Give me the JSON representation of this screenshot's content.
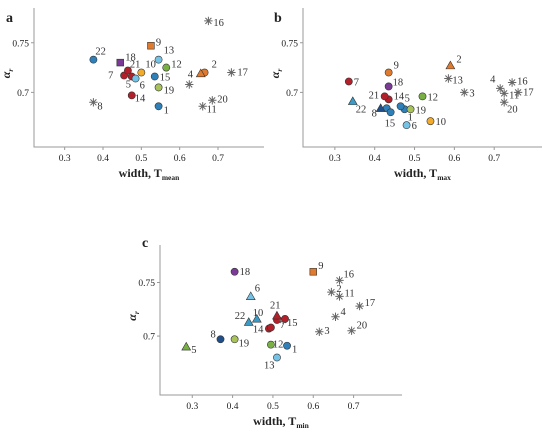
{
  "figure": {
    "colors": {
      "blue": "#2f7fb8",
      "navy": "#1f4f8a",
      "red": "#b3202a",
      "orange": "#e07a2e",
      "green": "#78b043",
      "lightblue": "#74c2e6",
      "purple": "#7a3a96",
      "olive": "#a7c35a",
      "yellow": "#f2ab2a",
      "teal": "#3c9bc6",
      "star": "#666666"
    }
  },
  "chart_data": [
    {
      "type": "scatter",
      "panel_label": "a",
      "xlabel": "width, T",
      "xlabel_sub": "mean",
      "ylabel": "α",
      "ylabel_sub": "r",
      "xlim": [
        0.22,
        0.82
      ],
      "ylim": [
        0.645,
        0.785
      ],
      "xticks": [
        {
          "value": 0.3,
          "label": "0.3"
        },
        {
          "value": 0.4,
          "label": "0.4"
        },
        {
          "value": 0.5,
          "label": "0.5"
        },
        {
          "value": 0.6,
          "label": "0.6"
        },
        {
          "value": 0.7,
          "label": "0.7"
        }
      ],
      "yticks": [
        {
          "value": 0.7,
          "label": "0.7"
        },
        {
          "value": 0.75,
          "label": "0.75"
        }
      ],
      "points": [
        {
          "label": "1",
          "x": 0.545,
          "y": 0.686,
          "shape": "circle",
          "color": "#2f7fb8",
          "dx": 5,
          "dy": 7
        },
        {
          "label": "2",
          "x": 0.665,
          "y": 0.72,
          "shape": "circle",
          "color": "#e07a2e",
          "dx": 7,
          "dy": -5
        },
        {
          "label": "4",
          "x": 0.655,
          "y": 0.719,
          "shape": "triangle",
          "color": "#e07a2e",
          "dx": -13,
          "dy": 4
        },
        {
          "label": "5",
          "x": 0.475,
          "y": 0.716,
          "shape": "circle",
          "color": "#b3202a",
          "dx": -6,
          "dy": 11
        },
        {
          "label": "6",
          "x": 0.485,
          "y": 0.714,
          "shape": "circle",
          "color": "#74c2e6",
          "dx": 4,
          "dy": 10
        },
        {
          "label": "7",
          "x": 0.455,
          "y": 0.717,
          "shape": "circle",
          "color": "#b3202a",
          "dx": -16,
          "dy": 3
        },
        {
          "label": "8",
          "x": 0.375,
          "y": 0.69,
          "shape": "star",
          "color": "#666666",
          "dx": 4,
          "dy": 7
        },
        {
          "label": "9",
          "x": 0.525,
          "y": 0.747,
          "shape": "square",
          "color": "#e07a2e",
          "dx": 5,
          "dy": 0
        },
        {
          "label": "10",
          "x": 0.5,
          "y": 0.72,
          "shape": "circle",
          "color": "#f2ab2a",
          "dx": 4,
          "dy": -5
        },
        {
          "label": "11",
          "x": 0.66,
          "y": 0.686,
          "shape": "star",
          "color": "#666666",
          "dx": 4,
          "dy": 6
        },
        {
          "label": "12",
          "x": 0.565,
          "y": 0.725,
          "shape": "circle",
          "color": "#78b043",
          "dx": 5,
          "dy": 0
        },
        {
          "label": "13",
          "x": 0.545,
          "y": 0.733,
          "shape": "circle",
          "color": "#74c2e6",
          "dx": 5,
          "dy": -6
        },
        {
          "label": "14",
          "x": 0.475,
          "y": 0.697,
          "shape": "circle",
          "color": "#b3202a",
          "dx": 3,
          "dy": 6
        },
        {
          "label": "15",
          "x": 0.535,
          "y": 0.716,
          "shape": "circle",
          "color": "#2f7fb8",
          "dx": 5,
          "dy": 4
        },
        {
          "label": "16",
          "x": 0.675,
          "y": 0.772,
          "shape": "star",
          "color": "#666666",
          "dx": 5,
          "dy": 5
        },
        {
          "label": "17",
          "x": 0.735,
          "y": 0.72,
          "shape": "star",
          "color": "#666666",
          "dx": 6,
          "dy": 3
        },
        {
          "label": "18",
          "x": 0.445,
          "y": 0.73,
          "shape": "square",
          "color": "#7a3a96",
          "dx": 5,
          "dy": -2
        },
        {
          "label": "19",
          "x": 0.545,
          "y": 0.705,
          "shape": "circle",
          "color": "#a7c35a",
          "dx": 5,
          "dy": 6
        },
        {
          "label": "20",
          "x": 0.685,
          "y": 0.692,
          "shape": "star",
          "color": "#666666",
          "dx": 5,
          "dy": 2
        },
        {
          "label": "21",
          "x": 0.465,
          "y": 0.722,
          "shape": "circle",
          "color": "#b3202a",
          "dx": 2,
          "dy": -3
        },
        {
          "label": "22",
          "x": 0.375,
          "y": 0.733,
          "shape": "circle",
          "color": "#2f7fb8",
          "dx": 2,
          "dy": -5
        },
        {
          "label": "",
          "x": 0.625,
          "y": 0.708,
          "shape": "star",
          "color": "#666666",
          "dx": 0,
          "dy": 0
        }
      ]
    },
    {
      "type": "scatter",
      "panel_label": "b",
      "xlabel": "width, T",
      "xlabel_sub": "max",
      "ylabel": "α",
      "ylabel_sub": "r",
      "xlim": [
        0.22,
        0.82
      ],
      "ylim": [
        0.645,
        0.785
      ],
      "xticks": [
        {
          "value": 0.3,
          "label": "0.3"
        },
        {
          "value": 0.4,
          "label": "0.4"
        },
        {
          "value": 0.5,
          "label": "0.5"
        },
        {
          "value": 0.6,
          "label": "0.6"
        },
        {
          "value": 0.7,
          "label": "0.7"
        }
      ],
      "yticks": [
        {
          "value": 0.7,
          "label": "0.7"
        },
        {
          "value": 0.75,
          "label": "0.75"
        }
      ],
      "points": [
        {
          "label": "1",
          "x": 0.475,
          "y": 0.683,
          "shape": "circle",
          "color": "#2f7fb8",
          "dx": 3,
          "dy": 11
        },
        {
          "label": "2",
          "x": 0.59,
          "y": 0.727,
          "shape": "triangle",
          "color": "#e07a2e",
          "dx": 6,
          "dy": -3
        },
        {
          "label": "3",
          "x": 0.625,
          "y": 0.7,
          "shape": "star",
          "color": "#666666",
          "dx": 5,
          "dy": 4
        },
        {
          "label": "4",
          "x": 0.715,
          "y": 0.704,
          "shape": "star",
          "color": "#666666",
          "dx": -10,
          "dy": -6
        },
        {
          "label": "5",
          "x": 0.465,
          "y": 0.686,
          "shape": "circle",
          "color": "#2f7fb8",
          "dx": 4,
          "dy": -5
        },
        {
          "label": "6",
          "x": 0.48,
          "y": 0.667,
          "shape": "circle",
          "color": "#74c2e6",
          "dx": 5,
          "dy": 4
        },
        {
          "label": "7",
          "x": 0.335,
          "y": 0.711,
          "shape": "circle",
          "color": "#b3202a",
          "dx": 5,
          "dy": 4
        },
        {
          "label": "8",
          "x": 0.43,
          "y": 0.684,
          "shape": "circle",
          "color": "#2f7fb8",
          "dx": -15,
          "dy": 8
        },
        {
          "label": "9",
          "x": 0.435,
          "y": 0.72,
          "shape": "circle",
          "color": "#e07a2e",
          "dx": 5,
          "dy": -4
        },
        {
          "label": "10",
          "x": 0.54,
          "y": 0.671,
          "shape": "circle",
          "color": "#f2ab2a",
          "dx": 5,
          "dy": 4
        },
        {
          "label": "11",
          "x": 0.725,
          "y": 0.699,
          "shape": "star",
          "color": "#666666",
          "dx": 5,
          "dy": 5
        },
        {
          "label": "12",
          "x": 0.52,
          "y": 0.696,
          "shape": "circle",
          "color": "#78b043",
          "dx": 5,
          "dy": 4
        },
        {
          "label": "13",
          "x": 0.585,
          "y": 0.714,
          "shape": "star",
          "color": "#666666",
          "dx": 4,
          "dy": 5
        },
        {
          "label": "14",
          "x": 0.435,
          "y": 0.693,
          "shape": "circle",
          "color": "#b3202a",
          "dx": 5,
          "dy": 0
        },
        {
          "label": "15",
          "x": 0.44,
          "y": 0.68,
          "shape": "circle",
          "color": "#2f7fb8",
          "dx": -6,
          "dy": 14
        },
        {
          "label": "16",
          "x": 0.745,
          "y": 0.71,
          "shape": "star",
          "color": "#666666",
          "dx": 5,
          "dy": 2
        },
        {
          "label": "17",
          "x": 0.76,
          "y": 0.7,
          "shape": "star",
          "color": "#666666",
          "dx": 5,
          "dy": 3
        },
        {
          "label": "18",
          "x": 0.435,
          "y": 0.706,
          "shape": "circle",
          "color": "#7a3a96",
          "dx": 4,
          "dy": -1
        },
        {
          "label": "19",
          "x": 0.49,
          "y": 0.683,
          "shape": "circle",
          "color": "#a7c35a",
          "dx": 5,
          "dy": 4
        },
        {
          "label": "20",
          "x": 0.725,
          "y": 0.69,
          "shape": "star",
          "color": "#666666",
          "dx": 3,
          "dy": 10
        },
        {
          "label": "21",
          "x": 0.425,
          "y": 0.696,
          "shape": "circle",
          "color": "#b3202a",
          "dx": -16,
          "dy": 2
        },
        {
          "label": "22",
          "x": 0.345,
          "y": 0.691,
          "shape": "triangle",
          "color": "#3c9bc6",
          "dx": 3,
          "dy": 11
        },
        {
          "label": "",
          "x": 0.415,
          "y": 0.684,
          "shape": "triangle",
          "color": "#1f4f8a",
          "dx": 0,
          "dy": 0
        }
      ]
    },
    {
      "type": "scatter",
      "panel_label": "c",
      "xlabel": "width, T",
      "xlabel_sub": "min",
      "ylabel": "α",
      "ylabel_sub": "r",
      "xlim": [
        0.22,
        0.82
      ],
      "ylim": [
        0.645,
        0.785
      ],
      "xticks": [
        {
          "value": 0.3,
          "label": "0.3"
        },
        {
          "value": 0.4,
          "label": "0.4"
        },
        {
          "value": 0.5,
          "label": "0.5"
        },
        {
          "value": 0.6,
          "label": "0.6"
        },
        {
          "value": 0.7,
          "label": "0.7"
        }
      ],
      "yticks": [
        {
          "value": 0.7,
          "label": "0.7"
        },
        {
          "value": 0.75,
          "label": "0.75"
        }
      ],
      "points": [
        {
          "label": "1",
          "x": 0.535,
          "y": 0.691,
          "shape": "circle",
          "color": "#2f7fb8",
          "dx": 5,
          "dy": 7
        },
        {
          "label": "2",
          "x": 0.645,
          "y": 0.741,
          "shape": "star",
          "color": "#666666",
          "dx": 5,
          "dy": 0
        },
        {
          "label": "3",
          "x": 0.615,
          "y": 0.704,
          "shape": "star",
          "color": "#666666",
          "dx": 5,
          "dy": 2
        },
        {
          "label": "4",
          "x": 0.655,
          "y": 0.718,
          "shape": "star",
          "color": "#666666",
          "dx": 5,
          "dy": -2
        },
        {
          "label": "5",
          "x": 0.285,
          "y": 0.69,
          "shape": "triangle",
          "color": "#78b043",
          "dx": 5,
          "dy": 6
        },
        {
          "label": "6",
          "x": 0.445,
          "y": 0.737,
          "shape": "triangle",
          "color": "#74c2e6",
          "dx": 4,
          "dy": -5
        },
        {
          "label": "7",
          "x": 0.51,
          "y": 0.715,
          "shape": "circle",
          "color": "#b3202a",
          "dx": 3,
          "dy": 8
        },
        {
          "label": "8",
          "x": 0.37,
          "y": 0.697,
          "shape": "circle",
          "color": "#1f4f8a",
          "dx": -10,
          "dy": -2
        },
        {
          "label": "9",
          "x": 0.6,
          "y": 0.76,
          "shape": "square",
          "color": "#e07a2e",
          "dx": 5,
          "dy": -3
        },
        {
          "label": "10",
          "x": 0.44,
          "y": 0.713,
          "shape": "triangle",
          "color": "#3c9bc6",
          "dx": 4,
          "dy": -6
        },
        {
          "label": "11",
          "x": 0.665,
          "y": 0.737,
          "shape": "star",
          "color": "#666666",
          "dx": 5,
          "dy": 0
        },
        {
          "label": "12",
          "x": 0.495,
          "y": 0.692,
          "shape": "circle",
          "color": "#78b043",
          "dx": 2,
          "dy": 3
        },
        {
          "label": "13",
          "x": 0.51,
          "y": 0.68,
          "shape": "circle",
          "color": "#74c2e6",
          "dx": -13,
          "dy": 11
        },
        {
          "label": "14",
          "x": 0.49,
          "y": 0.707,
          "shape": "circle",
          "color": "#b3202a",
          "dx": -16,
          "dy": 4
        },
        {
          "label": "15",
          "x": 0.525,
          "y": 0.715,
          "shape": "star",
          "color": "#666666",
          "dx": 4,
          "dy": 6
        },
        {
          "label": "16",
          "x": 0.665,
          "y": 0.752,
          "shape": "star",
          "color": "#666666",
          "dx": 4,
          "dy": -3
        },
        {
          "label": "17",
          "x": 0.715,
          "y": 0.728,
          "shape": "star",
          "color": "#666666",
          "dx": 5,
          "dy": 0
        },
        {
          "label": "18",
          "x": 0.405,
          "y": 0.76,
          "shape": "circle",
          "color": "#7a3a96",
          "dx": 5,
          "dy": 3
        },
        {
          "label": "19",
          "x": 0.405,
          "y": 0.697,
          "shape": "circle",
          "color": "#a7c35a",
          "dx": 4,
          "dy": 7
        },
        {
          "label": "20",
          "x": 0.695,
          "y": 0.705,
          "shape": "star",
          "color": "#666666",
          "dx": 5,
          "dy": -2
        },
        {
          "label": "21",
          "x": 0.51,
          "y": 0.719,
          "shape": "triangle",
          "color": "#b3202a",
          "dx": -7,
          "dy": -7
        },
        {
          "label": "22",
          "x": 0.46,
          "y": 0.716,
          "shape": "triangle",
          "color": "#3c9bc6",
          "dx": -22,
          "dy": 0
        },
        {
          "label": "",
          "x": 0.53,
          "y": 0.716,
          "shape": "circle",
          "color": "#b3202a",
          "dx": 0,
          "dy": 0
        },
        {
          "label": "",
          "x": 0.495,
          "y": 0.708,
          "shape": "circle",
          "color": "#b3202a",
          "dx": 0,
          "dy": 0
        }
      ]
    }
  ]
}
